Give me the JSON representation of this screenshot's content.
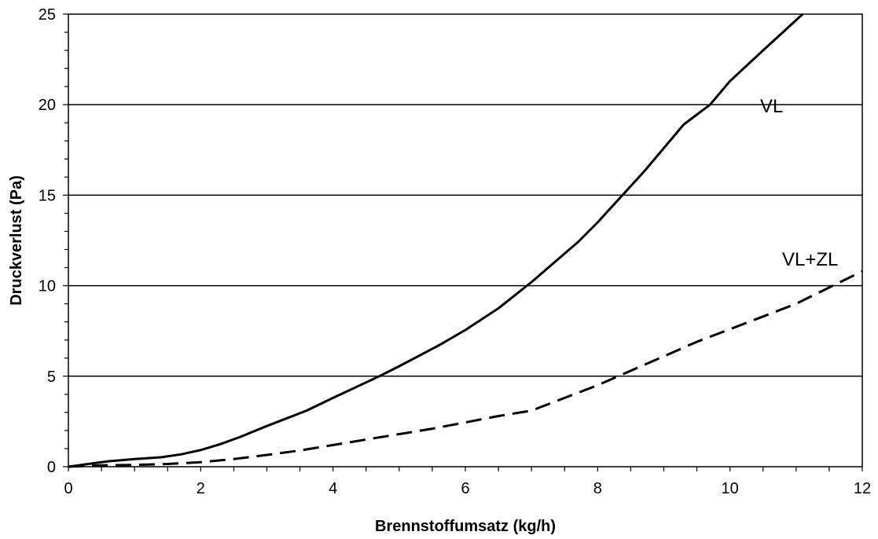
{
  "chart_data": {
    "type": "line",
    "xlabel": "Brennstoffumsatz (kg/h)",
    "ylabel": "Druckverlust (Pa)",
    "xlim": [
      0,
      12
    ],
    "ylim": [
      0,
      25
    ],
    "x_ticks": [
      0,
      2,
      4,
      6,
      8,
      10,
      12
    ],
    "y_ticks": [
      0,
      5,
      10,
      15,
      20,
      25
    ],
    "grid": "horizontal",
    "series": [
      {
        "name": "VL",
        "style": "solid",
        "x": [
          0,
          0.6,
          1.0,
          1.4,
          1.7,
          2.0,
          2.3,
          2.6,
          3.0,
          3.6,
          4.0,
          4.7,
          5.0,
          5.6,
          6.0,
          6.5,
          7.0,
          7.7,
          8.0,
          8.4,
          8.7,
          9.0,
          9.3,
          9.7,
          10.0,
          10.5,
          11.1
        ],
        "y": [
          0,
          0.3,
          0.42,
          0.52,
          0.68,
          0.92,
          1.25,
          1.65,
          2.25,
          3.1,
          3.8,
          5.0,
          5.55,
          6.7,
          7.55,
          8.75,
          10.2,
          12.4,
          13.5,
          15.1,
          16.3,
          17.6,
          18.9,
          20.0,
          21.3,
          23.0,
          25.0
        ]
      },
      {
        "name": "VL+ZL",
        "style": "dashed",
        "x": [
          0,
          0.5,
          1.0,
          1.5,
          2.0,
          2.5,
          3.0,
          3.5,
          4.0,
          4.5,
          5.0,
          5.5,
          6.0,
          6.5,
          7.0,
          7.5,
          8.0,
          8.5,
          9.0,
          9.5,
          10.0,
          10.5,
          11.0,
          11.5,
          12.0
        ],
        "y": [
          0,
          0.08,
          0.1,
          0.15,
          0.25,
          0.42,
          0.65,
          0.9,
          1.2,
          1.5,
          1.8,
          2.1,
          2.45,
          2.8,
          3.1,
          3.8,
          4.5,
          5.3,
          6.1,
          6.9,
          7.6,
          8.3,
          9.0,
          9.9,
          10.8
        ]
      }
    ]
  }
}
